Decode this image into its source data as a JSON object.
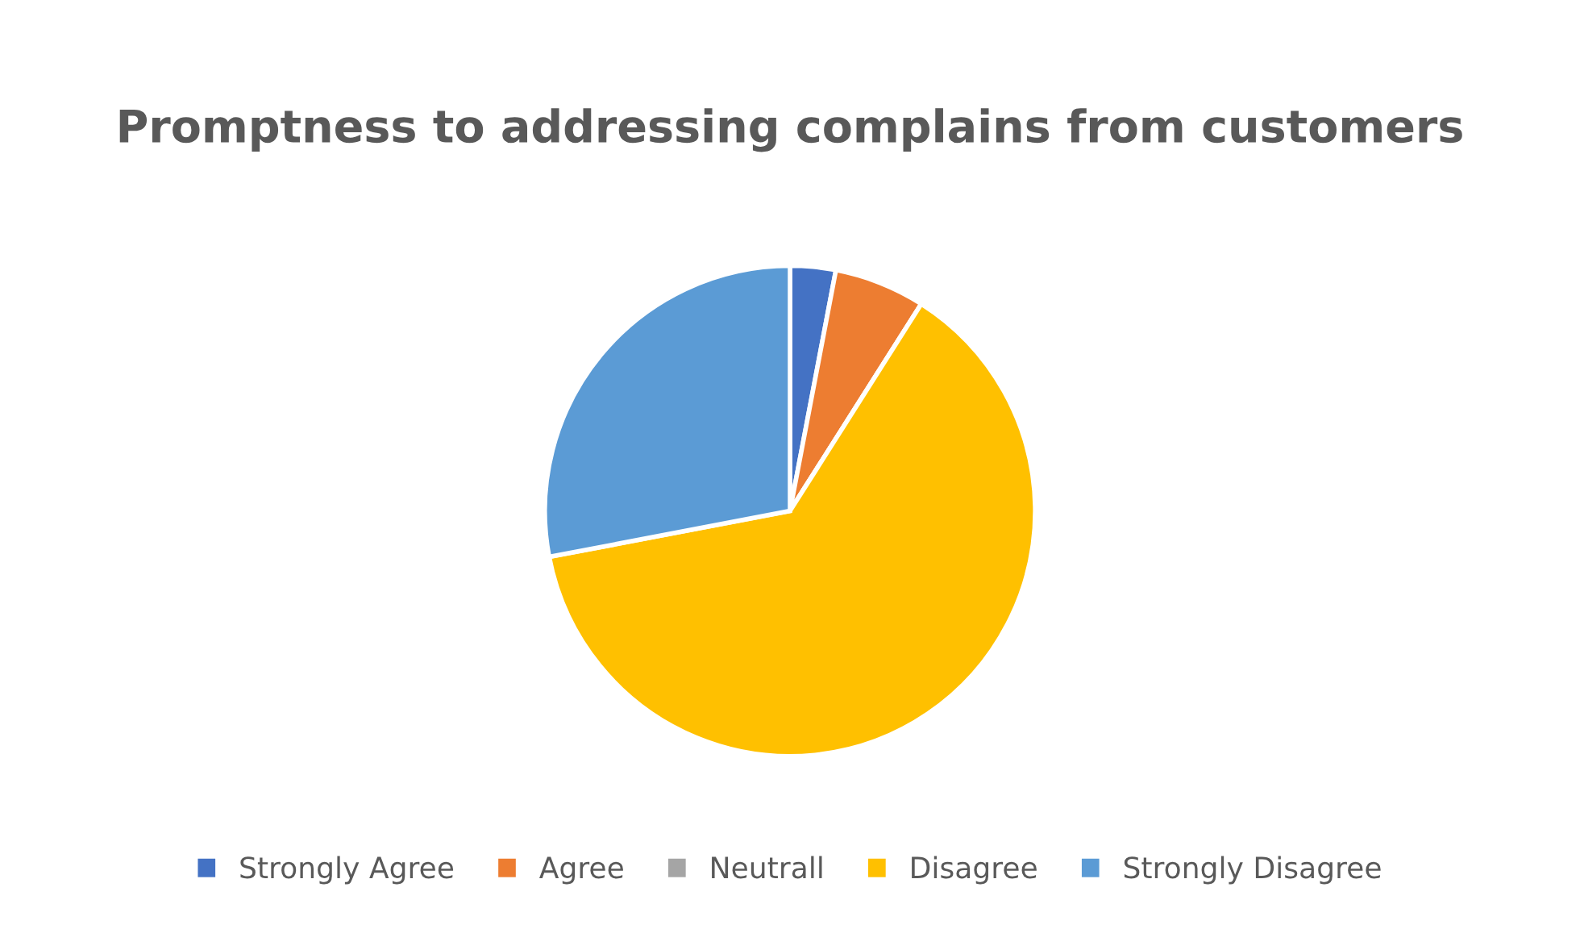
{
  "chart_data": {
    "type": "pie",
    "title": "Promptness to addressing complains from customers",
    "categories": [
      "Strongly Agree",
      "Agree",
      "Neutrall",
      "Disagree",
      "Strongly Disagree"
    ],
    "values": [
      3,
      6,
      0,
      63,
      28
    ],
    "colors": [
      "#4472c4",
      "#ed7d31",
      "#a5a5a5",
      "#ffc000",
      "#5b9bd5"
    ],
    "legend": "bottom"
  }
}
